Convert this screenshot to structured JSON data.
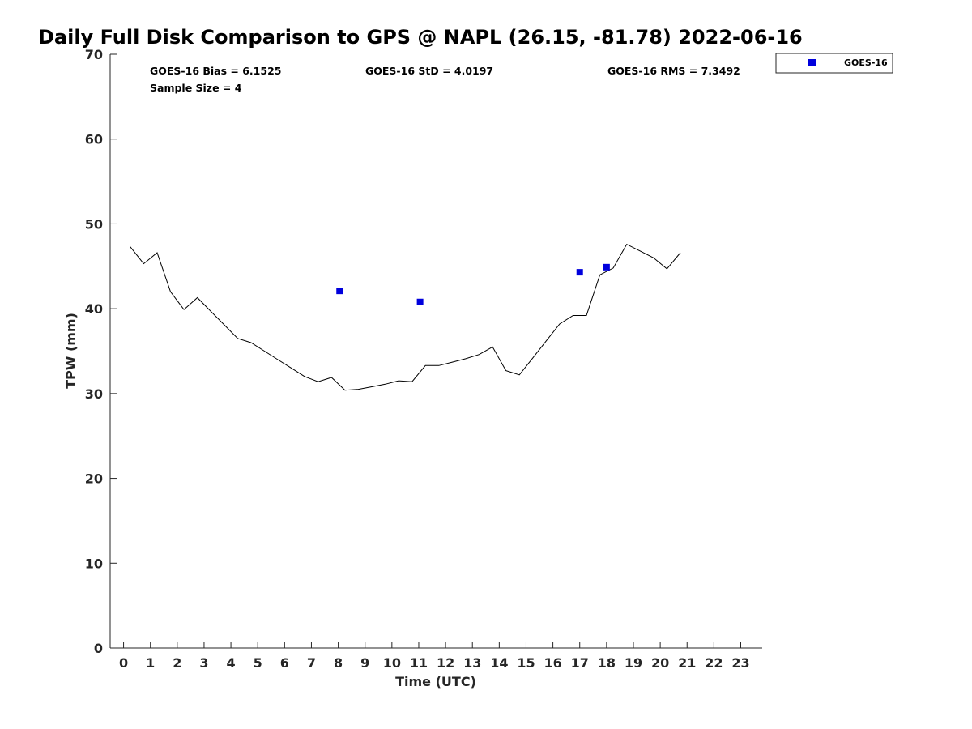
{
  "chart_data": {
    "type": "scatter",
    "title": "Daily Full Disk Comparison to GPS @ NAPL (26.15, -81.78) 2022-06-16",
    "xlabel": "Time (UTC)",
    "ylabel": "TPW (mm)",
    "xlim": [
      -0.5,
      23.8
    ],
    "ylim": [
      0,
      70
    ],
    "x_ticks": [
      "0",
      "1",
      "2",
      "3",
      "4",
      "5",
      "6",
      "7",
      "8",
      "9",
      "10",
      "11",
      "12",
      "13",
      "14",
      "15",
      "16",
      "17",
      "18",
      "19",
      "20",
      "21",
      "22",
      "23"
    ],
    "y_ticks": [
      "0",
      "10",
      "20",
      "30",
      "40",
      "50",
      "60",
      "70"
    ],
    "grid": false,
    "legend_position": "top-right",
    "stats": {
      "bias": "GOES-16 Bias = 6.1525",
      "std": "GOES-16 StD = 4.0197",
      "rms": "GOES-16 RMS = 7.3492",
      "sample": "Sample Size = 4"
    },
    "series": [
      {
        "type": "line",
        "color": "#000000",
        "x": [
          0.25,
          0.75,
          1.25,
          1.75,
          2.25,
          2.75,
          3.25,
          3.75,
          4.25,
          4.75,
          5.25,
          5.75,
          6.25,
          6.75,
          7.25,
          7.75,
          8.25,
          8.75,
          9.25,
          9.75,
          10.25,
          10.75,
          11.25,
          11.75,
          12.25,
          12.75,
          13.25,
          13.75,
          14.25,
          14.75,
          15.25,
          15.75,
          16.25,
          16.75,
          17.25,
          17.75,
          18.25,
          18.75,
          19.25,
          19.75,
          20.25,
          20.75
        ],
        "y": [
          47.3,
          45.3,
          46.6,
          42.0,
          39.9,
          41.3,
          39.7,
          38.1,
          36.5,
          36.0,
          35.0,
          34.0,
          33.0,
          32.0,
          31.4,
          31.9,
          30.4,
          30.5,
          30.8,
          31.1,
          31.5,
          31.4,
          33.3,
          33.3,
          33.7,
          34.1,
          34.6,
          35.5,
          32.7,
          32.2,
          34.2,
          36.2,
          38.2,
          39.2,
          39.2,
          44.0,
          44.8,
          47.6,
          46.8,
          46.0,
          44.7,
          46.6
        ]
      },
      {
        "name": "GOES-16",
        "type": "scatter",
        "color": "#0000dd",
        "x": [
          8.05,
          11.05,
          17.0,
          18.0
        ],
        "y": [
          42.1,
          40.8,
          44.3,
          44.9
        ]
      }
    ]
  }
}
